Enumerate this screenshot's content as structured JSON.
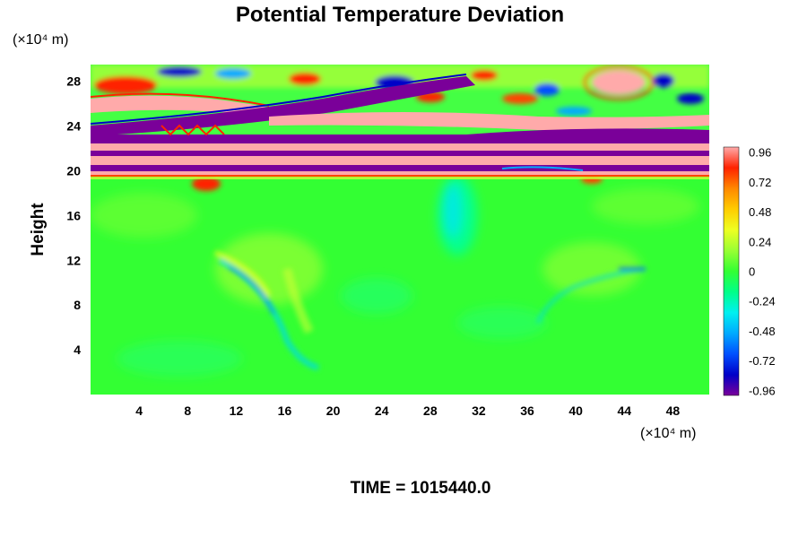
{
  "chart_data": {
    "type": "heatmap",
    "title": "Potential Temperature Deviation",
    "ylabel": "Height",
    "x_unit": "(×10⁴ m)",
    "y_unit": "(×10⁴ m)",
    "x_ticks": [
      "4",
      "8",
      "12",
      "16",
      "20",
      "24",
      "28",
      "32",
      "36",
      "40",
      "44",
      "48"
    ],
    "y_ticks": [
      "4",
      "8",
      "12",
      "16",
      "20",
      "24",
      "28"
    ],
    "xlim": [
      0,
      51
    ],
    "ylim": [
      0,
      29.5
    ],
    "colorbar": {
      "ticks": [
        "0.96",
        "0.72",
        "0.48",
        "0.24",
        "0",
        "-0.24",
        "-0.48",
        "-0.72",
        "-0.96"
      ],
      "range": [
        -1.0,
        1.0
      ],
      "colors": [
        "#7a0099",
        "#0000c8",
        "#0050ff",
        "#00aaff",
        "#00f0f0",
        "#00ff88",
        "#33ff33",
        "#99ff33",
        "#eeff22",
        "#ffcc00",
        "#ff8800",
        "#ff2200",
        "#ffaaaa"
      ]
    },
    "time_label": "TIME = 1015440.0"
  }
}
